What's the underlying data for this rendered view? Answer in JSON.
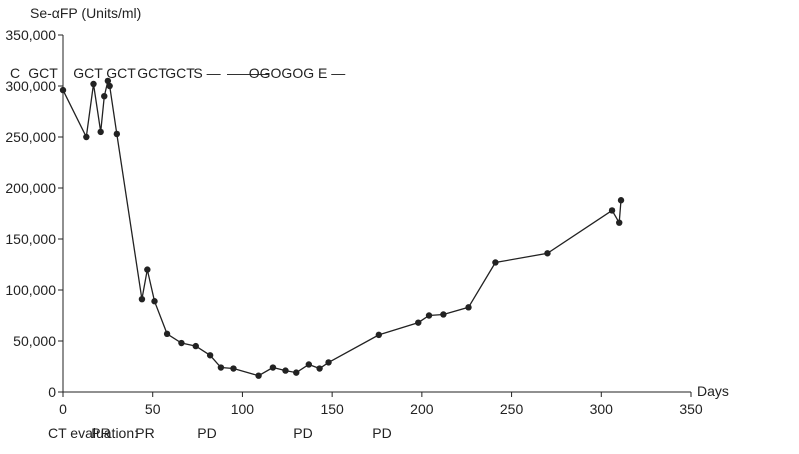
{
  "chart_data": {
    "type": "line",
    "ylabel": "Se-αFP (Units/ml)",
    "xlabel": "Days",
    "xlim": [
      0,
      350
    ],
    "ylim": [
      0,
      350000
    ],
    "x_ticks": [
      0,
      50,
      100,
      150,
      200,
      250,
      300,
      350
    ],
    "y_ticks": [
      0,
      50000,
      100000,
      150000,
      200000,
      250000,
      300000,
      350000
    ],
    "x_tick_labels": [
      "0",
      "50",
      "100",
      "150",
      "200",
      "250",
      "300",
      "350"
    ],
    "y_tick_labels": [
      "0",
      "50,000",
      "100,000",
      "150,000",
      "200,000",
      "250,000",
      "300,000",
      "350,000"
    ],
    "grid": false,
    "series": [
      {
        "x": [
          0,
          13,
          17,
          21,
          23,
          25,
          26,
          30,
          44,
          47,
          51,
          58,
          66,
          74,
          82,
          88,
          95,
          109,
          117,
          124,
          130,
          137,
          143,
          148,
          176,
          198,
          204,
          212,
          226,
          241,
          270,
          306,
          310,
          311
        ],
        "y": [
          296000,
          250000,
          302000,
          255000,
          290000,
          305000,
          300000,
          253000,
          91000,
          120000,
          89000,
          57000,
          48000,
          45000,
          36000,
          24000,
          23000,
          16000,
          24000,
          21000,
          19000,
          27000,
          23000,
          29000,
          56000,
          68000,
          75000,
          76000,
          83000,
          127000,
          136000,
          178000,
          166000,
          188000
        ]
      }
    ],
    "annotations": [
      {
        "text": "C",
        "x": 15
      },
      {
        "text": "GCT",
        "x": 43
      },
      {
        "text": "GCT",
        "x": 88
      },
      {
        "text": "GCT",
        "x": 121
      },
      {
        "text": "GCT",
        "x": 152
      },
      {
        "text": "GCT",
        "x": 180
      },
      {
        "text": "S —",
        "x": 207
      },
      {
        "text": "———",
        "x": 248
      },
      {
        "text": "OGOGOG E —",
        "x": 297
      }
    ],
    "ct_evaluation_label": "CT evaluation:",
    "ct_evaluations": [
      {
        "text": "PR",
        "x": 101
      },
      {
        "text": "PR",
        "x": 145
      },
      {
        "text": "PD",
        "x": 207
      },
      {
        "text": "PD",
        "x": 303
      },
      {
        "text": "PD",
        "x": 382
      }
    ]
  }
}
